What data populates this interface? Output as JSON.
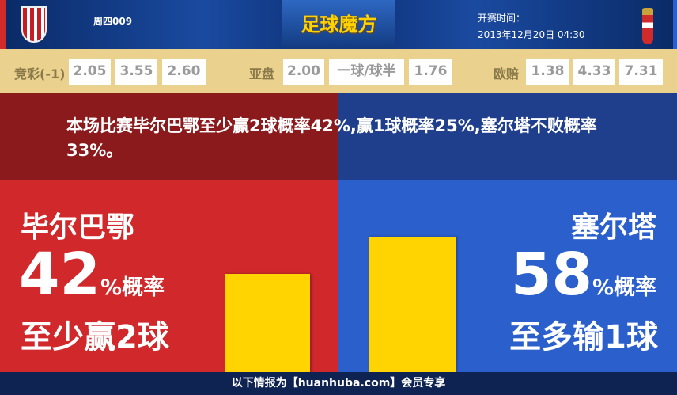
{
  "header": {
    "match_no": "周四009",
    "logo_text": "足球魔方",
    "kickoff_label": "开赛时间：",
    "kickoff_time": "2013年12月20日 04:30"
  },
  "odds": {
    "jingcai": {
      "label": "竞彩(-1)",
      "values": [
        "2.05",
        "3.55",
        "2.60"
      ]
    },
    "asian": {
      "label": "亚盘",
      "values": [
        "2.00",
        "一球/球半",
        "1.76"
      ]
    },
    "euro": {
      "label": "欧赔",
      "values": [
        "1.38",
        "4.33",
        "7.31"
      ]
    }
  },
  "summary": "本场比赛毕尔巴鄂至少赢2球概率42%,赢1球概率25%,塞尔塔不败概率33%。",
  "home": {
    "name": "毕尔巴鄂",
    "percent": "42",
    "percent_suffix": "%概率",
    "result": "至少赢2球",
    "bar_value": 42,
    "color": "#d0282b"
  },
  "away": {
    "name": "塞尔塔",
    "percent": "58",
    "percent_suffix": "%概率",
    "result": "至多输1球",
    "bar_value": 58,
    "color": "#2a5fcc"
  },
  "footer": "以下情报为【huanhuba.com】会员专享"
}
